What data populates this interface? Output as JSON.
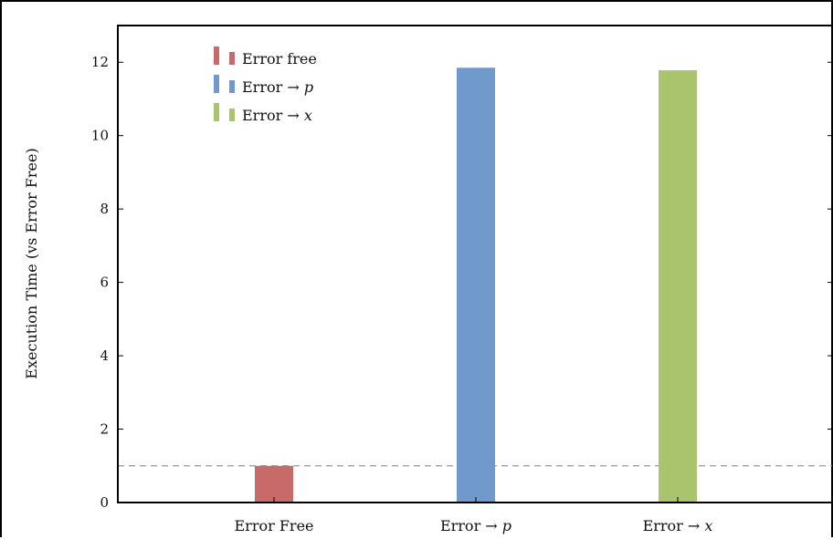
{
  "chart_data": {
    "type": "bar",
    "categories": [
      "Error Free",
      "Error → p",
      "Error → x"
    ],
    "values": [
      1.0,
      11.85,
      11.78
    ],
    "ylabel": "Execution Time (vs Error Free)",
    "ylim": [
      0,
      13
    ],
    "yticks": [
      0,
      2,
      4,
      6,
      8,
      10,
      12
    ],
    "reference_line": 1,
    "grid": false,
    "legend_position": "top-left",
    "legend": [
      {
        "label": "Error free",
        "color": "#c86a6a"
      },
      {
        "label": "Error → ",
        "var": "p",
        "color": "#7099cc"
      },
      {
        "label": "Error → ",
        "var": "x",
        "color": "#aac46e"
      }
    ],
    "colors": [
      "#c86a6a",
      "#7099cc",
      "#aac46e"
    ]
  }
}
